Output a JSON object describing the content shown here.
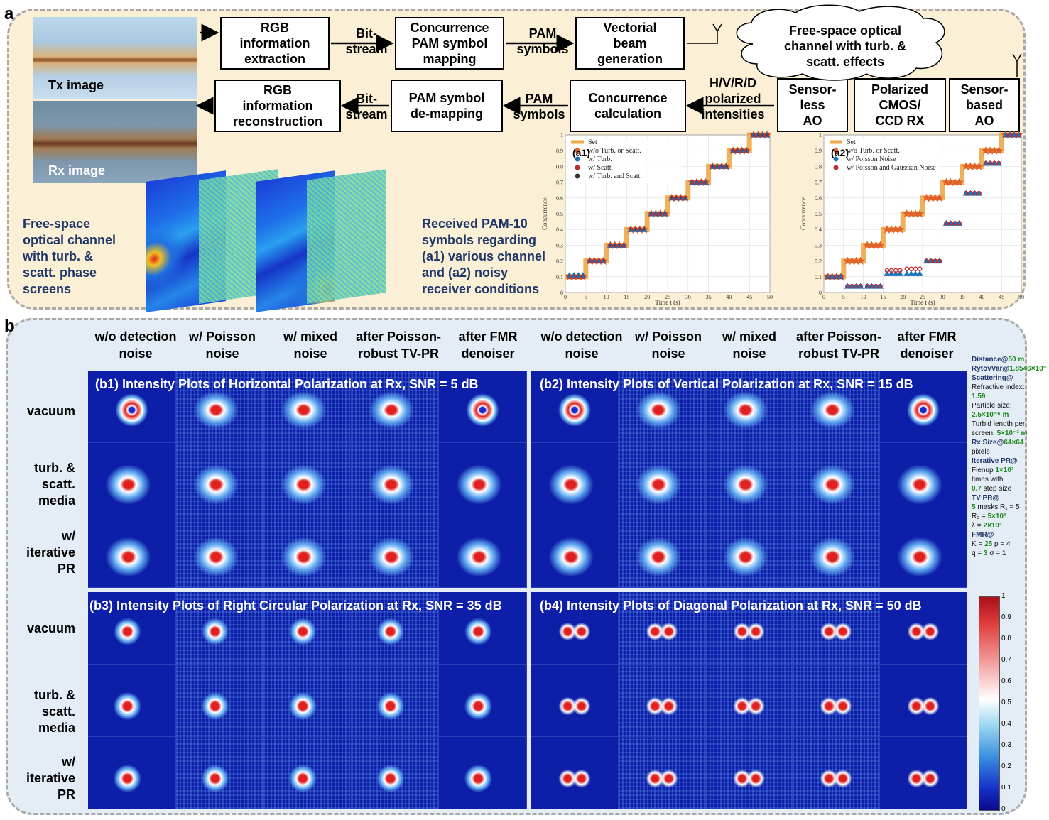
{
  "panel_a": {
    "label": "a",
    "tx_image_label": "Tx image",
    "rx_image_label": "Rx image",
    "boxes": {
      "rgb_extraction": "RGB\ninformation\nextraction",
      "concurrence_mapping": "Concurrence\nPAM symbol\nmapping",
      "vectorial_beam": "Vectorial\nbeam\ngeneration",
      "rgb_reconstruction": "RGB\ninformation\nreconstruction",
      "pam_demapping": "PAM symbol\nde-mapping",
      "concurrence_calc": "Concurrence\ncalculation",
      "sensorless_ao": "Sensor-\nless\nAO",
      "polarized_rx": "Polarized\nCMOS/\nCCD RX",
      "sensor_based_ao": "Sensor-\nbased\nAO"
    },
    "arrow_labels": {
      "bitstream_top": "Bit-\nstream",
      "pam_symbols_top": "PAM\nsymbols",
      "bitstream_bottom": "Bit-\nstream",
      "pam_symbols_bottom": "PAM\nsymbols",
      "intensities": "H/V/R/D\npolarized\nintensities"
    },
    "cloud_text": "Free-space optical\nchannel with turb. &\nscatt. effects",
    "phase_screen_text": "Free-space\noptical channel\nwith turb. &\nscatt. phase\nscreens",
    "received_text": "Received PAM-10\nsymbols regarding\n(a1) various channel\nand (a2) noisy\nreceiver conditions"
  },
  "chart_data": [
    {
      "type": "line",
      "panel": "(a1)",
      "xlabel": "Time t (s)",
      "ylabel": "Concurrence",
      "xlim": [
        0,
        50
      ],
      "ylim": [
        0,
        1
      ],
      "xticks": [
        0,
        5,
        10,
        15,
        20,
        25,
        30,
        35,
        40,
        45,
        50
      ],
      "yticks": [
        0,
        0.1,
        0.2,
        0.3,
        0.4,
        0.5,
        0.6,
        0.7,
        0.8,
        0.9,
        1
      ],
      "grid": true,
      "legend": "top-left",
      "series": [
        {
          "name": "Set",
          "color": "#f0a848",
          "x": [
            0,
            5,
            10,
            15,
            20,
            25,
            30,
            35,
            40,
            45,
            50
          ],
          "values": [
            0.1,
            0.2,
            0.3,
            0.4,
            0.5,
            0.6,
            0.7,
            0.8,
            0.9,
            1.0,
            1.0
          ]
        },
        {
          "name": "w/o Turb. or Scatt.",
          "color": "#e0602a",
          "values": [
            0.1,
            0.2,
            0.3,
            0.4,
            0.5,
            0.6,
            0.7,
            0.8,
            0.9,
            1.0
          ]
        },
        {
          "name": "w/ Turb.",
          "color": "#1a73b8",
          "values": [
            0.11,
            0.2,
            0.3,
            0.4,
            0.5,
            0.6,
            0.7,
            0.8,
            0.9,
            1.0
          ]
        },
        {
          "name": "w/ Scatt.",
          "color": "#c0282a",
          "values": [
            0.1,
            0.2,
            0.3,
            0.4,
            0.5,
            0.6,
            0.7,
            0.8,
            0.9,
            1.0
          ]
        },
        {
          "name": "w/ Turb. and Scatt.",
          "color": "#333333",
          "values": [
            0.11,
            0.2,
            0.3,
            0.4,
            0.5,
            0.6,
            0.7,
            0.8,
            0.9,
            1.0
          ]
        }
      ]
    },
    {
      "type": "line",
      "panel": "(a2)",
      "xlabel": "Time t (s)",
      "ylabel": "Concurrence",
      "xlim": [
        0,
        50
      ],
      "ylim": [
        0,
        1
      ],
      "xticks": [
        0,
        5,
        10,
        15,
        20,
        25,
        30,
        35,
        40,
        45,
        50
      ],
      "yticks": [
        0,
        0.1,
        0.2,
        0.3,
        0.4,
        0.5,
        0.6,
        0.7,
        0.8,
        0.9,
        1
      ],
      "grid": true,
      "legend": "top-left",
      "series": [
        {
          "name": "Set",
          "color": "#f0a848",
          "values": [
            0.1,
            0.2,
            0.3,
            0.4,
            0.5,
            0.6,
            0.7,
            0.8,
            0.9,
            1.0
          ]
        },
        {
          "name": "w/o Turb. or Scatt.",
          "color": "#e0602a",
          "values": [
            0.1,
            0.2,
            0.3,
            0.4,
            0.5,
            0.6,
            0.7,
            0.8,
            0.9,
            1.0
          ]
        },
        {
          "name": "w/ Poisson Noise",
          "color": "#1a73b8",
          "values": [
            0.1,
            0.04,
            0.04,
            0.12,
            0.12,
            0.2,
            0.44,
            0.63,
            0.82,
            1.0
          ]
        },
        {
          "name": "w/ Poisson and Gaussian Noise",
          "color": "#c0282a",
          "values": [
            0.1,
            0.04,
            0.04,
            0.14,
            0.15,
            0.2,
            0.44,
            0.63,
            0.82,
            1.0
          ]
        }
      ]
    }
  ],
  "panel_b": {
    "label": "b",
    "column_headers": [
      "w/o detection\nnoise",
      "w/ Poisson\nnoise",
      "w/ mixed\nnoise",
      "after Poisson-\nrobust TV-PR",
      "after FMR\ndenoiser"
    ],
    "row_headers": [
      "vacuum",
      "turb. &\nscatt.\nmedia",
      "w/\niterative\nPR"
    ],
    "panel_titles": {
      "b1": "(b1)  Intensity Plots of Horizontal Polarization at Rx, SNR = 5 dB",
      "b2": "(b2)  Intensity Plots of Vertical Polarization at Rx, SNR = 15 dB",
      "b3": "(b3)   Intensity Plots of Right Circular Polarization at Rx, SNR = 35 dB",
      "b4": "(b4)  Intensity Plots of Diagonal Polarization at Rx, SNR = 50 dB"
    },
    "colorbar_ticks": [
      "1",
      "0.9",
      "0.8",
      "0.7",
      "0.6",
      "0.5",
      "0.4",
      "0.3",
      "0.2",
      "0.1",
      "0"
    ],
    "sidebar": [
      {
        "k": "Distance@",
        "v": "50 m"
      },
      {
        "k": "RytovVar@",
        "v": "1.8546×10⁻¹"
      },
      {
        "k": "Scattering@",
        "v": ""
      },
      {
        "t": "Refractive index:",
        "v": "1.59"
      },
      {
        "t": "Particle size:",
        "v": "2.5×10⁻⁶ m"
      },
      {
        "t": "Turbid length per screen:",
        "v": "5×10⁻² m"
      },
      {
        "k": "Rx Size@",
        "v": "64×64",
        "t2": "pixels"
      },
      {
        "k": "Iterative PR@",
        "v": ""
      },
      {
        "t": "Fienup",
        "v": "1×10³",
        "t2": "times with"
      },
      {
        "v": "0.7",
        "t2": "step size"
      },
      {
        "k": "TV-PR@",
        "v": ""
      },
      {
        "v": "5",
        "t2": "masks R₁ = 5"
      },
      {
        "t": "R₂ =",
        "v": "5×10³"
      },
      {
        "t": "λ =",
        "v": "2×10²"
      },
      {
        "k": "FMR@",
        "v": ""
      },
      {
        "t": "K =",
        "v": "25",
        "t2": "p = 4"
      },
      {
        "t": "q =",
        "v": "3",
        "t2": "σ = 1"
      }
    ]
  }
}
